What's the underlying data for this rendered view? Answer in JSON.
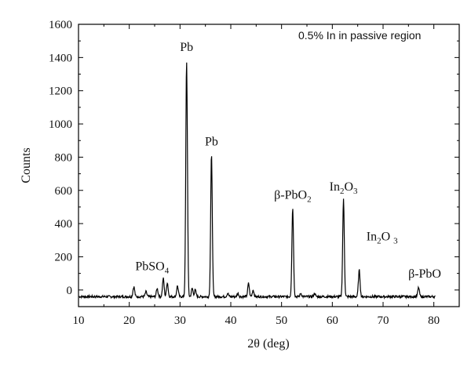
{
  "chart_data": {
    "type": "line",
    "title": "",
    "xlabel": "2θ (deg)",
    "ylabel": "Counts",
    "xlim": [
      10,
      85
    ],
    "ylim": [
      -100,
      1600
    ],
    "xticks": [
      10,
      20,
      30,
      40,
      50,
      60,
      70,
      80
    ],
    "yticks": [
      0,
      200,
      400,
      600,
      800,
      1000,
      1200,
      1400,
      1600
    ],
    "grid": false,
    "inset_label": "0.5% In in passive region",
    "series": [
      {
        "name": "",
        "color": "#000000",
        "baseline": -40,
        "peaks": [
          {
            "x": 20.9,
            "y": 20
          },
          {
            "x": 23.3,
            "y": -10
          },
          {
            "x": 25.5,
            "y": 10
          },
          {
            "x": 26.7,
            "y": 70
          },
          {
            "x": 27.5,
            "y": 45
          },
          {
            "x": 29.5,
            "y": 25
          },
          {
            "x": 31.3,
            "y": 1380
          },
          {
            "x": 32.4,
            "y": 10
          },
          {
            "x": 33.0,
            "y": 0
          },
          {
            "x": 36.2,
            "y": 815
          },
          {
            "x": 39.4,
            "y": -20
          },
          {
            "x": 41.4,
            "y": -20
          },
          {
            "x": 43.5,
            "y": 40
          },
          {
            "x": 44.4,
            "y": 0
          },
          {
            "x": 52.2,
            "y": 495
          },
          {
            "x": 53.8,
            "y": -20
          },
          {
            "x": 56.5,
            "y": -20
          },
          {
            "x": 62.2,
            "y": 545
          },
          {
            "x": 65.3,
            "y": 120
          },
          {
            "x": 77.0,
            "y": 15
          }
        ]
      }
    ],
    "annotations": [
      {
        "parts": [
          "PbSO",
          "4",
          ""
        ],
        "x": 24.5,
        "y": 120
      },
      {
        "parts": [
          "Pb",
          "",
          ""
        ],
        "x": 31.3,
        "y": 1440
      },
      {
        "parts": [
          "Pb",
          "",
          ""
        ],
        "x": 36.2,
        "y": 870
      },
      {
        "parts": [
          "β-PbO",
          "2",
          ""
        ],
        "x": 52.2,
        "y": 550
      },
      {
        "parts": [
          "In",
          "2",
          "O",
          "3"
        ],
        "x": 62.2,
        "y": 600
      },
      {
        "parts": [
          "In",
          "2",
          "O ",
          "3"
        ],
        "x": 69.8,
        "y": 300
      },
      {
        "parts": [
          "β-PbO",
          "",
          ""
        ],
        "x": 78.2,
        "y": 75
      }
    ]
  }
}
